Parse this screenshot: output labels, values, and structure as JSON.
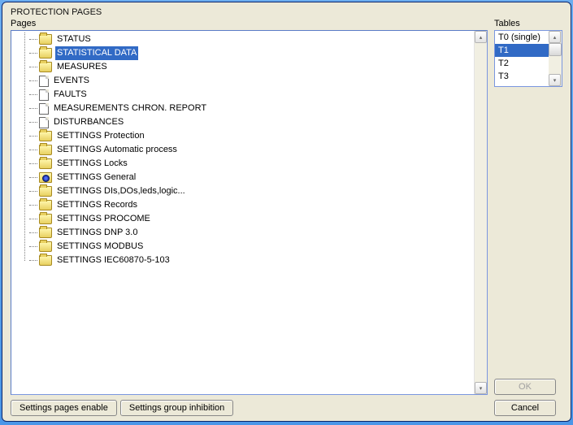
{
  "window": {
    "title": "PROTECTION PAGES"
  },
  "groups": {
    "pages_label": "Pages",
    "tables_label": "Tables"
  },
  "tree": {
    "items": [
      {
        "type": "folder",
        "label": "STATUS",
        "selected": false
      },
      {
        "type": "folder",
        "label": "STATISTICAL DATA",
        "selected": true
      },
      {
        "type": "folder",
        "label": "MEASURES",
        "selected": false
      },
      {
        "type": "doc",
        "label": "EVENTS",
        "selected": false
      },
      {
        "type": "doc",
        "label": "FAULTS",
        "selected": false
      },
      {
        "type": "doc",
        "label": "MEASUREMENTS CHRON. REPORT",
        "selected": false
      },
      {
        "type": "doc",
        "label": "DISTURBANCES",
        "selected": false
      },
      {
        "type": "folder",
        "label": "SETTINGS Protection",
        "selected": false
      },
      {
        "type": "folder",
        "label": "SETTINGS Automatic process",
        "selected": false
      },
      {
        "type": "folder",
        "label": "SETTINGS Locks",
        "selected": false
      },
      {
        "type": "gear",
        "label": "SETTINGS General",
        "selected": false
      },
      {
        "type": "folder",
        "label": "SETTINGS DIs,DOs,leds,logic...",
        "selected": false
      },
      {
        "type": "folder",
        "label": "SETTINGS Records",
        "selected": false
      },
      {
        "type": "folder",
        "label": "SETTINGS PROCOME",
        "selected": false
      },
      {
        "type": "folder",
        "label": "SETTINGS DNP 3.0",
        "selected": false
      },
      {
        "type": "folder",
        "label": "SETTINGS MODBUS",
        "selected": false
      },
      {
        "type": "folder",
        "label": "SETTINGS IEC60870-5-103",
        "selected": false
      }
    ]
  },
  "tables": {
    "items": [
      {
        "label": "T0 (single)",
        "selected": false
      },
      {
        "label": "T1",
        "selected": true
      },
      {
        "label": "T2",
        "selected": false
      },
      {
        "label": "T3",
        "selected": false
      }
    ]
  },
  "buttons": {
    "settings_pages_enable": "Settings pages enable",
    "settings_group_inhibition": "Settings group inhibition",
    "ok": "OK",
    "cancel": "Cancel"
  },
  "colors": {
    "selection_bg": "#316ac5",
    "selection_fg": "#ffffff",
    "window_bg": "#ece9d8",
    "list_border": "#7a96df",
    "folder_fill_top": "#fff8b0",
    "folder_fill_bottom": "#e8d060",
    "folder_border": "#a88a20"
  }
}
